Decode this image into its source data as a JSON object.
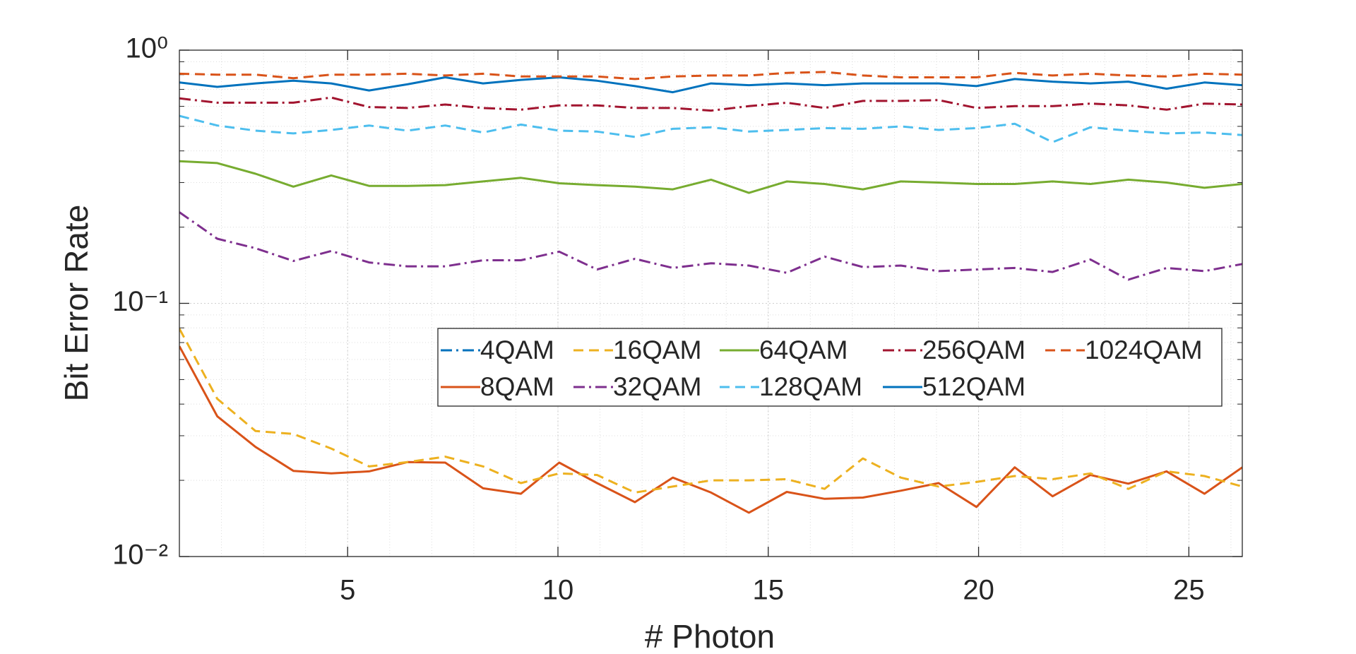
{
  "chart_data": {
    "type": "line",
    "xlabel": "# Photon",
    "ylabel": "Bit Error Rate",
    "x": [
      1,
      1.9,
      2.81,
      3.71,
      4.61,
      5.51,
      6.42,
      7.32,
      8.22,
      9.12,
      10.03,
      10.93,
      11.83,
      12.73,
      13.64,
      14.54,
      15.44,
      16.34,
      17.25,
      18.15,
      19.05,
      19.95,
      20.86,
      21.76,
      22.66,
      23.56,
      24.47,
      25.37,
      26.27
    ],
    "xlim": [
      1,
      26.27
    ],
    "xticks": [
      5,
      10,
      15,
      20,
      25
    ],
    "ylim": [
      0.01,
      1
    ],
    "yticks": [
      {
        "value": 0.01,
        "label": "10⁻²"
      },
      {
        "value": 0.1,
        "label": "10⁻¹"
      },
      {
        "value": 1,
        "label": "10⁰"
      }
    ],
    "yscale": "log",
    "grid": true,
    "series": [
      {
        "name": "4QAM",
        "color": "#0072BD",
        "dash": "dashdot",
        "values": [
          null,
          null,
          null,
          null,
          null,
          null,
          null,
          null,
          null,
          null,
          null,
          null,
          null,
          null,
          null,
          null,
          null,
          null,
          null,
          null,
          null,
          null,
          null,
          null,
          null,
          null,
          null,
          null,
          null
        ]
      },
      {
        "name": "8QAM",
        "color": "#D95319",
        "dash": "solid",
        "values": [
          0.0677,
          0.0358,
          0.0271,
          0.0218,
          0.0213,
          0.0217,
          0.0236,
          0.0235,
          0.0186,
          0.0177,
          0.0235,
          0.0195,
          0.0164,
          0.0205,
          0.0179,
          0.0149,
          0.018,
          0.0169,
          0.0171,
          0.0182,
          0.0195,
          0.0157,
          0.0225,
          0.0173,
          0.021,
          0.0194,
          0.0217,
          0.0177,
          0.0225
        ]
      },
      {
        "name": "16QAM",
        "color": "#EDB120",
        "dash": "dashed",
        "values": [
          0.0794,
          0.042,
          0.0313,
          0.0305,
          0.0267,
          0.0227,
          0.0236,
          0.0248,
          0.0227,
          0.0195,
          0.0213,
          0.021,
          0.0179,
          0.0189,
          0.02,
          0.02,
          0.0202,
          0.0185,
          0.0244,
          0.0205,
          0.0189,
          0.0197,
          0.0208,
          0.0202,
          0.0213,
          0.0185,
          0.0217,
          0.0208,
          0.0189
        ]
      },
      {
        "name": "32QAM",
        "color": "#7E2F8E",
        "dash": "dashdot",
        "values": [
          0.229,
          0.18,
          0.165,
          0.147,
          0.161,
          0.145,
          0.14,
          0.14,
          0.148,
          0.148,
          0.16,
          0.136,
          0.15,
          0.138,
          0.144,
          0.141,
          0.132,
          0.153,
          0.139,
          0.141,
          0.134,
          0.136,
          0.138,
          0.133,
          0.149,
          0.124,
          0.138,
          0.134,
          0.143
        ]
      },
      {
        "name": "64QAM",
        "color": "#77AC30",
        "dash": "solid",
        "values": [
          0.364,
          0.358,
          0.325,
          0.289,
          0.32,
          0.291,
          0.291,
          0.293,
          0.303,
          0.313,
          0.298,
          0.293,
          0.289,
          0.282,
          0.308,
          0.273,
          0.303,
          0.296,
          0.282,
          0.303,
          0.3,
          0.296,
          0.296,
          0.303,
          0.296,
          0.308,
          0.3,
          0.286,
          0.296
        ]
      },
      {
        "name": "128QAM",
        "color": "#4DBEEE",
        "dash": "dashed",
        "values": [
          0.55,
          0.504,
          0.481,
          0.469,
          0.484,
          0.504,
          0.481,
          0.504,
          0.473,
          0.508,
          0.481,
          0.477,
          0.454,
          0.489,
          0.496,
          0.477,
          0.484,
          0.492,
          0.489,
          0.5,
          0.484,
          0.492,
          0.512,
          0.433,
          0.496,
          0.481,
          0.469,
          0.473,
          0.462
        ]
      },
      {
        "name": "256QAM",
        "color": "#A2142F",
        "dash": "dashdot",
        "values": [
          0.645,
          0.62,
          0.62,
          0.62,
          0.65,
          0.596,
          0.591,
          0.61,
          0.591,
          0.582,
          0.605,
          0.605,
          0.591,
          0.591,
          0.577,
          0.601,
          0.62,
          0.591,
          0.63,
          0.63,
          0.635,
          0.591,
          0.601,
          0.601,
          0.615,
          0.605,
          0.582,
          0.615,
          0.61
        ]
      },
      {
        "name": "512QAM",
        "color": "#0072BD",
        "dash": "solid",
        "values": [
          0.745,
          0.716,
          0.739,
          0.757,
          0.739,
          0.693,
          0.733,
          0.781,
          0.739,
          0.763,
          0.781,
          0.757,
          0.721,
          0.682,
          0.739,
          0.727,
          0.739,
          0.727,
          0.739,
          0.739,
          0.739,
          0.721,
          0.769,
          0.751,
          0.739,
          0.751,
          0.704,
          0.745,
          0.727
        ]
      },
      {
        "name": "1024QAM",
        "color": "#D95319",
        "dash": "dashed",
        "values": [
          0.807,
          0.8,
          0.8,
          0.775,
          0.8,
          0.8,
          0.807,
          0.794,
          0.807,
          0.787,
          0.787,
          0.787,
          0.769,
          0.787,
          0.794,
          0.794,
          0.813,
          0.82,
          0.794,
          0.781,
          0.781,
          0.781,
          0.813,
          0.794,
          0.807,
          0.794,
          0.787,
          0.807,
          0.8
        ]
      }
    ]
  }
}
